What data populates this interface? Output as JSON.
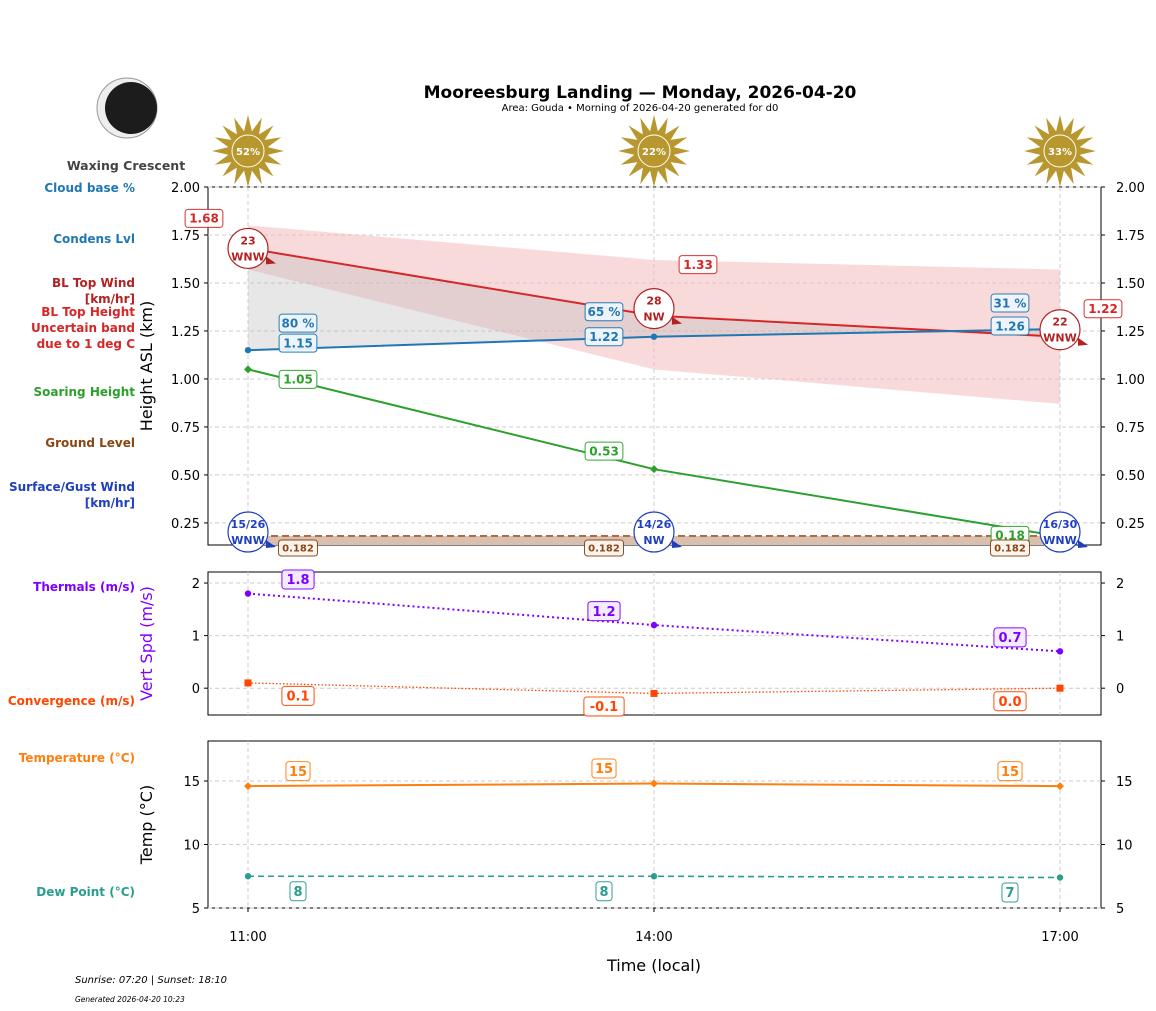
{
  "title": "Mooreesburg Landing — Monday, 2026-04-20",
  "subtitle": "Area: Gouda • Morning of 2026-04-20 generated for d0",
  "moon": {
    "phase": "Waxing Crescent",
    "icon": "moon-waxing-crescent-icon"
  },
  "footer": {
    "sun": "Sunrise: 07:20 | Sunset: 18:10",
    "generated": "Generated 2026-04-20 10:23"
  },
  "colors": {
    "bl_top": "#d62728",
    "condens": "#1f77b4",
    "soaring": "#2ca02c",
    "ground": "#8b4513",
    "surface_wind": "#1f3fbf",
    "thermals": "#8000ff",
    "convergence": "#ff4500",
    "temperature": "#ff7f0e",
    "dew_point": "#2a9d8f",
    "sun": "#b8972e"
  },
  "row_labels": [
    {
      "text": "Cloud base %",
      "color": "#1f77b4"
    },
    {
      "text": "Condens Lvl",
      "color": "#1f77b4"
    },
    {
      "text": "BL Top Wind\n[km/hr]",
      "color": "#b22222"
    },
    {
      "text": "BL Top Height\nUncertain band\ndue to 1 deg C",
      "color": "#d62728"
    },
    {
      "text": "Soaring Height",
      "color": "#2ca02c"
    },
    {
      "text": "Ground Level",
      "color": "#8b4513"
    },
    {
      "text": "Surface/Gust Wind\n[km/hr]",
      "color": "#1f3fbf"
    },
    {
      "text": "Thermals (m/s)",
      "color": "#8000ff"
    },
    {
      "text": "Convergence (m/s)",
      "color": "#ff4500"
    },
    {
      "text": "Temperature (°C)",
      "color": "#ff7f0e"
    },
    {
      "text": "Dew Point (°C)",
      "color": "#2a9d8f"
    }
  ],
  "chart_data": [
    {
      "type": "line",
      "ylabel": "Height ASL (km)",
      "x": [
        "11:00",
        "14:00",
        "17:00"
      ],
      "ylim": [
        0.135,
        2.0
      ],
      "yticks": [
        "0.25",
        "0.50",
        "0.75",
        "1.00",
        "1.25",
        "1.50",
        "1.75",
        "2.00"
      ],
      "grid": true,
      "sun_cover": [
        "52%",
        "22%",
        "33%"
      ],
      "series": [
        {
          "key": "bl_top",
          "values": [
            1.68,
            1.33,
            1.22
          ],
          "labels": [
            "1.68",
            "1.33",
            "1.22"
          ]
        },
        {
          "key": "bl_band",
          "low": [
            1.57,
            1.05,
            0.87
          ],
          "high": [
            1.8,
            1.62,
            1.57
          ]
        },
        {
          "key": "condens",
          "values": [
            1.15,
            1.22,
            1.26
          ],
          "labels": [
            "1.15",
            "1.22",
            "1.26"
          ],
          "cloud_pct": [
            "80 %",
            "65 %",
            "31 %"
          ]
        },
        {
          "key": "soaring",
          "values": [
            1.05,
            0.53,
            0.18
          ],
          "labels": [
            "1.05",
            "0.53",
            "0.18"
          ]
        },
        {
          "key": "ground",
          "values": [
            0.182,
            0.182,
            0.182
          ],
          "labels": [
            "0.182",
            "0.182",
            "0.182"
          ]
        }
      ],
      "bl_wind": [
        {
          "speed": "23",
          "dir": "WNW"
        },
        {
          "speed": "28",
          "dir": "NW"
        },
        {
          "speed": "22",
          "dir": "WNW"
        }
      ],
      "surface_wind": [
        {
          "speed": "15/26",
          "dir": "WNW"
        },
        {
          "speed": "14/26",
          "dir": "NW"
        },
        {
          "speed": "16/30",
          "dir": "WNW"
        }
      ]
    },
    {
      "type": "line",
      "ylabel": "Vert Spd (m/s)",
      "x": [
        "11:00",
        "14:00",
        "17:00"
      ],
      "ylim": [
        -0.51,
        2.21
      ],
      "yticks": [
        "0",
        "1",
        "2"
      ],
      "series": [
        {
          "key": "thermals",
          "values": [
            1.8,
            1.2,
            0.7
          ],
          "labels": [
            "1.8",
            "1.2",
            "0.7"
          ]
        },
        {
          "key": "convergence",
          "values": [
            0.1,
            -0.1,
            0.0
          ],
          "labels": [
            "0.1",
            "-0.1",
            "0.0"
          ]
        }
      ]
    },
    {
      "type": "line",
      "ylabel": "Temp (°C)",
      "xlabel": "Time (local)",
      "x": [
        "11:00",
        "14:00",
        "17:00"
      ],
      "ylim": [
        5,
        18.15
      ],
      "yticks": [
        "5",
        "10",
        "15"
      ],
      "series": [
        {
          "key": "temperature",
          "values": [
            14.6,
            14.8,
            14.6
          ],
          "labels": [
            "15",
            "15",
            "15"
          ]
        },
        {
          "key": "dew_point",
          "values": [
            7.5,
            7.5,
            7.4
          ],
          "labels": [
            "8",
            "8",
            "7"
          ]
        }
      ]
    }
  ]
}
